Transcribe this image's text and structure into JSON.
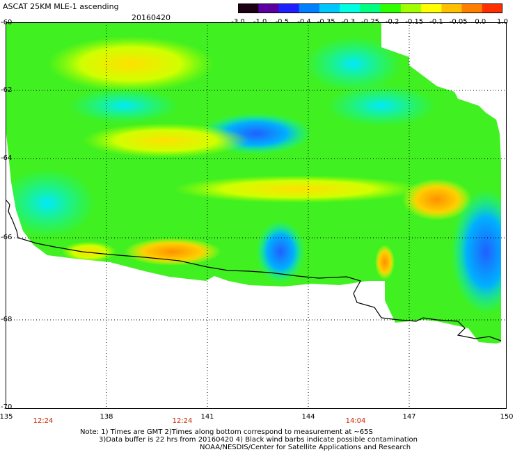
{
  "header": {
    "title": "ASCAT 25KM MLE-1 ascending",
    "date": "20160420"
  },
  "colorbar": {
    "labels": [
      "-3.0",
      "-1.0",
      "-0.5",
      "-0.4",
      "-0.35",
      "-0.3",
      "-0.25",
      "-0.2",
      "-0.15",
      "-0.1",
      "-0.05",
      "0.0",
      "1.0"
    ],
    "colors": [
      "#1a0010",
      "#5a00a0",
      "#2020ff",
      "#0080ff",
      "#00c8ff",
      "#00ffe0",
      "#00ff80",
      "#30ff00",
      "#a0ff00",
      "#ffff00",
      "#ffc000",
      "#ff8000",
      "#ff3000"
    ]
  },
  "axes": {
    "lat_labels": [
      "-60",
      "-62",
      "-64",
      "-66",
      "-68",
      "-70"
    ],
    "lon_labels": [
      "135",
      "138",
      "141",
      "144",
      "147",
      "150"
    ],
    "time_labels": [
      "12:24",
      "12:24",
      "14:04"
    ]
  },
  "footer": {
    "note_line1": "Note: 1) Times are GMT 2)Times along bottom correspond to measurement at ~65S",
    "note_line2": "3)Data buffer is 22 hrs from 20160420 4) Black wind barbs indicate possible contamination",
    "credit": "NOAA/NESDIS/Center for Satellite Applications and Research"
  }
}
